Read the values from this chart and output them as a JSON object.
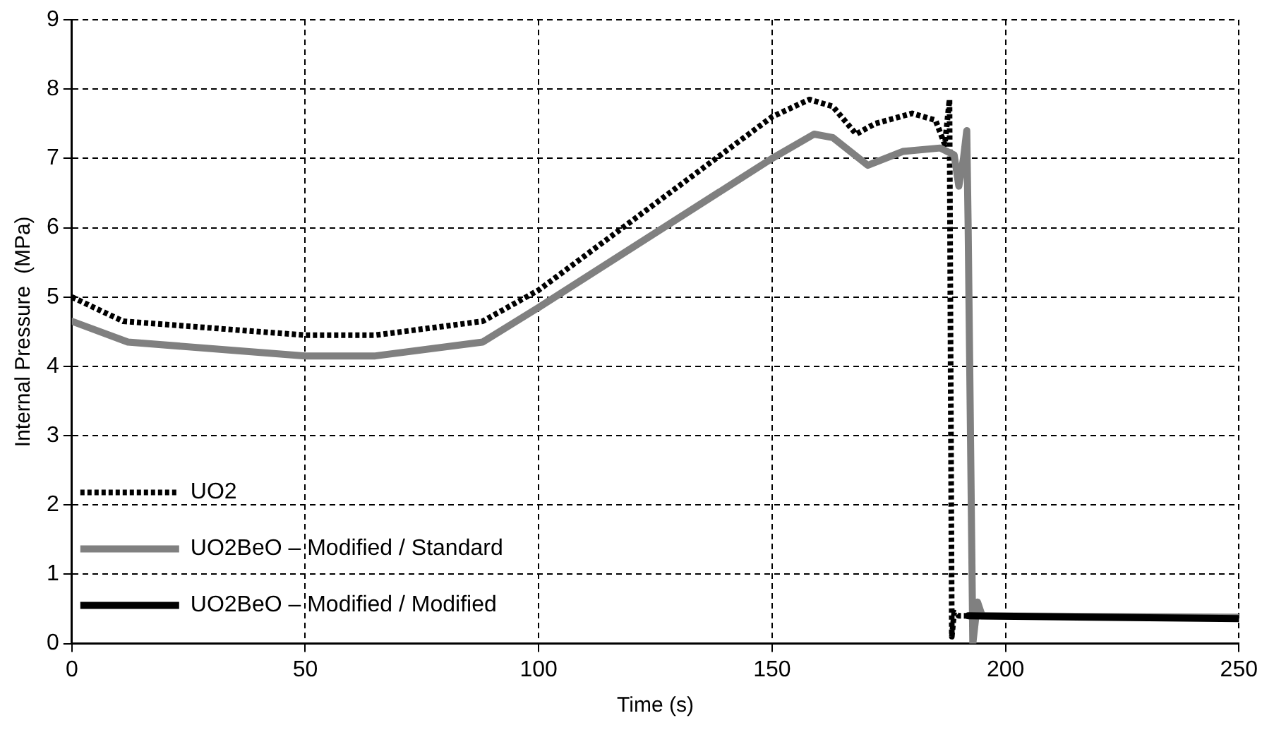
{
  "chart_data": {
    "type": "line",
    "xlabel": "Time (s)",
    "ylabel": "Internal Pressure  (MPa)",
    "xlim": [
      0,
      250
    ],
    "xticks": [
      0,
      50,
      100,
      150,
      200,
      250
    ],
    "ylim": [
      0,
      9
    ],
    "yticks": [
      0,
      1,
      2,
      3,
      4,
      5,
      6,
      7,
      8,
      9
    ],
    "grid": true,
    "legend": "bottom left",
    "marker": "none",
    "series": [
      {
        "name": "UO2",
        "color": "#000000",
        "line_style": "dotted",
        "x": [
          0,
          11,
          50,
          65,
          88,
          100,
          150,
          158,
          163,
          168,
          172,
          180,
          185,
          187,
          188,
          188.5,
          189,
          190,
          250
        ],
        "values": [
          5.0,
          4.65,
          4.45,
          4.45,
          4.65,
          5.1,
          7.6,
          7.85,
          7.75,
          7.35,
          7.5,
          7.65,
          7.55,
          7.2,
          7.85,
          0.1,
          0.45,
          0.4,
          0.38
        ]
      },
      {
        "name": "UO2BeO – Modified / Standard",
        "color": "#808080",
        "line_style": "solid",
        "x": [
          0,
          12,
          50,
          65,
          88,
          100,
          150,
          159,
          163,
          170.5,
          178,
          186,
          189,
          190,
          191,
          191.7,
          192,
          193,
          194,
          195,
          250
        ],
        "values": [
          4.65,
          4.35,
          4.15,
          4.15,
          4.35,
          4.85,
          7.0,
          7.35,
          7.3,
          6.9,
          7.1,
          7.15,
          7.05,
          6.6,
          7.0,
          7.4,
          6.0,
          0.0,
          0.6,
          0.4,
          0.38
        ]
      },
      {
        "name": "UO2BeO – Modified / Modified",
        "color": "#000000",
        "line_style": "solid",
        "x": [
          192,
          250
        ],
        "values": [
          0.4,
          0.36
        ]
      }
    ]
  }
}
